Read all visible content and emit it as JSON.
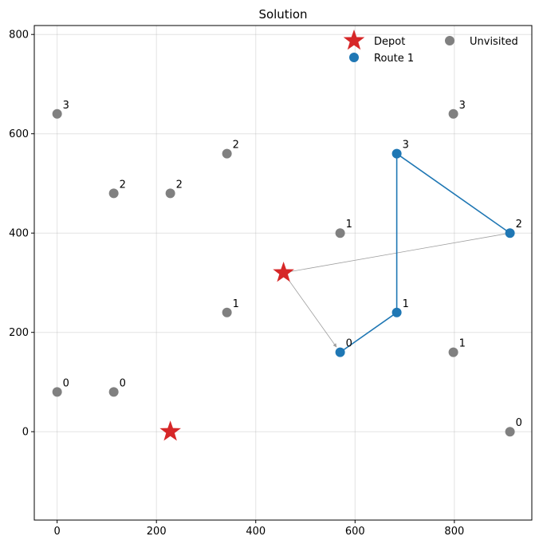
{
  "chart_data": {
    "type": "scatter",
    "title": "Solution",
    "xlabel": "",
    "ylabel": "",
    "xlim": [
      -46,
      956
    ],
    "ylim": [
      -178,
      818
    ],
    "grid": true,
    "x_ticks": [
      0,
      200,
      400,
      600,
      800
    ],
    "y_ticks": [
      0,
      200,
      400,
      600,
      800
    ],
    "x_tick_labels": [
      "0",
      "200",
      "400",
      "600",
      "800"
    ],
    "y_tick_labels": [
      "0",
      "200",
      "400",
      "600",
      "800"
    ],
    "legend_position": "top-right",
    "legend": [
      {
        "label": "Depot",
        "marker": "star",
        "color": "#d62728"
      },
      {
        "label": "Unvisited",
        "marker": "circle",
        "color": "#808080"
      },
      {
        "label": "Route 1",
        "marker": "circle",
        "color": "#1f77b4"
      }
    ],
    "depots": [
      {
        "x": 228,
        "y": 0
      },
      {
        "x": 456,
        "y": 320
      }
    ],
    "unvisited": [
      {
        "x": 0,
        "y": 80,
        "label": "0"
      },
      {
        "x": 114,
        "y": 80,
        "label": "0"
      },
      {
        "x": 912,
        "y": 0,
        "label": "0"
      },
      {
        "x": 342,
        "y": 240,
        "label": "1"
      },
      {
        "x": 570,
        "y": 400,
        "label": "1"
      },
      {
        "x": 798,
        "y": 160,
        "label": "1"
      },
      {
        "x": 114,
        "y": 480,
        "label": "2"
      },
      {
        "x": 228,
        "y": 480,
        "label": "2"
      },
      {
        "x": 342,
        "y": 560,
        "label": "2"
      },
      {
        "x": 0,
        "y": 640,
        "label": "3"
      },
      {
        "x": 798,
        "y": 640,
        "label": "3"
      }
    ],
    "series": [
      {
        "name": "Route 1",
        "color": "#1f77b4",
        "points": [
          {
            "x": 570,
            "y": 160,
            "label": "0"
          },
          {
            "x": 684,
            "y": 240,
            "label": "1"
          },
          {
            "x": 684,
            "y": 560,
            "label": "3"
          },
          {
            "x": 912,
            "y": 400,
            "label": "2"
          }
        ]
      }
    ],
    "depot_links": [
      {
        "from": {
          "x": 456,
          "y": 320
        },
        "to": {
          "x": 570,
          "y": 160
        },
        "arrow": true
      },
      {
        "from": {
          "x": 912,
          "y": 400
        },
        "to": {
          "x": 456,
          "y": 320
        },
        "arrow": false
      }
    ]
  }
}
